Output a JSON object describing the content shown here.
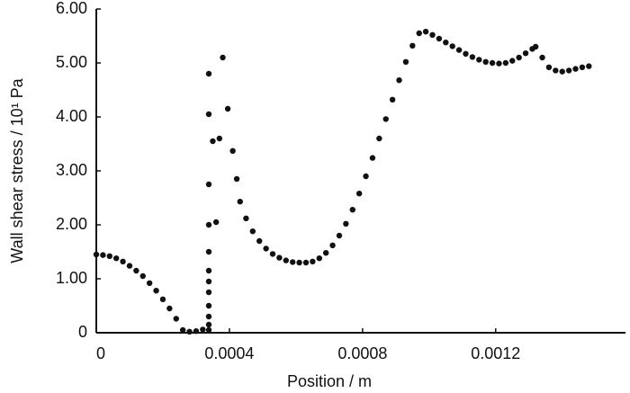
{
  "chart_data": {
    "type": "scatter",
    "x_label": "Position / m",
    "y_label": "Wall shear stress / 10¹ Pa",
    "xlim": [
      0,
      0.00159
    ],
    "ylim": [
      0,
      6
    ],
    "xticks": [
      0,
      0.0004,
      0.0008,
      0.0012
    ],
    "yticks": [
      0,
      {
        "value": 1,
        "label": "1.00"
      },
      {
        "value": 2,
        "label": "2.00"
      },
      {
        "value": 3,
        "label": "3.00"
      },
      {
        "value": 4,
        "label": "4.00"
      },
      {
        "value": 5,
        "label": "5.00"
      },
      {
        "value": 6,
        "label": "6.00"
      }
    ],
    "color": "#111111",
    "x": [
      0,
      2e-05,
      4e-05,
      6e-05,
      8e-05,
      0.0001,
      0.00012,
      0.00014,
      0.00016,
      0.00018,
      0.0002,
      0.00022,
      0.00024,
      0.00026,
      0.00028,
      0.0003,
      0.00032,
      0.000338,
      0.000338,
      0.000338,
      0.000338,
      0.000338,
      0.000338,
      0.000338,
      0.000338,
      0.000338,
      0.000338,
      0.000338,
      0.000338,
      0.00035,
      0.00036,
      0.00037,
      0.00038,
      0.000395,
      0.00041,
      0.000422,
      0.000432,
      0.00045,
      0.00047,
      0.00049,
      0.00051,
      0.00053,
      0.00055,
      0.00057,
      0.00059,
      0.00061,
      0.00063,
      0.00065,
      0.00067,
      0.00069,
      0.00071,
      0.00073,
      0.00075,
      0.00077,
      0.00079,
      0.00081,
      0.00083,
      0.00085,
      0.00087,
      0.00089,
      0.00091,
      0.00093,
      0.00095,
      0.00097,
      0.00099,
      0.00101,
      0.00103,
      0.00105,
      0.00107,
      0.00109,
      0.00111,
      0.00113,
      0.00115,
      0.00117,
      0.00119,
      0.00121,
      0.00123,
      0.00125,
      0.00127,
      0.00129,
      0.00131,
      0.00132,
      0.00134,
      0.00136,
      0.00138,
      0.0014,
      0.00142,
      0.00144,
      0.00146,
      0.00148
    ],
    "y": [
      1.45,
      1.44,
      1.42,
      1.38,
      1.32,
      1.24,
      1.15,
      1.05,
      0.92,
      0.78,
      0.62,
      0.45,
      0.26,
      0.05,
      0.02,
      0.03,
      0.06,
      0.05,
      0.15,
      0.3,
      0.5,
      0.75,
      0.95,
      1.15,
      1.5,
      2.0,
      2.75,
      4.05,
      4.8,
      3.55,
      2.05,
      3.6,
      5.1,
      4.15,
      3.37,
      2.85,
      2.43,
      2.12,
      1.88,
      1.7,
      1.56,
      1.46,
      1.39,
      1.34,
      1.31,
      1.3,
      1.3,
      1.32,
      1.38,
      1.48,
      1.62,
      1.8,
      2.02,
      2.28,
      2.58,
      2.9,
      3.24,
      3.6,
      3.96,
      4.32,
      4.68,
      5.02,
      5.32,
      5.55,
      5.58,
      5.52,
      5.45,
      5.38,
      5.31,
      5.24,
      5.17,
      5.11,
      5.06,
      5.02,
      5.0,
      4.99,
      5.0,
      5.04,
      5.1,
      5.18,
      5.26,
      5.3,
      5.1,
      4.92,
      4.86,
      4.84,
      4.86,
      4.89,
      4.92,
      4.94
    ]
  }
}
